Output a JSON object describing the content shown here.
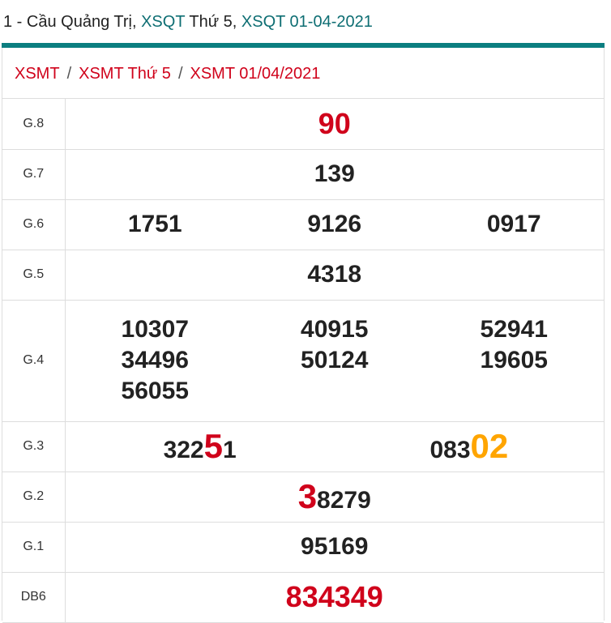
{
  "header": {
    "prefix": "1 - Cầu Quảng Trị, ",
    "link1": "XSQT",
    "mid": " Thứ 5, ",
    "link2": "XSQT 01-04-2021"
  },
  "breadcrumb": [
    "XSMT",
    "XSMT Thứ 5",
    "XSMT 01/04/2021"
  ],
  "breadcrumb_sep": "/",
  "colors": {
    "accent": "#0b7e80",
    "red": "#d0021b",
    "orange": "#ffa500"
  },
  "prizes": {
    "g8": {
      "label": "G.8",
      "value": "90"
    },
    "g7": {
      "label": "G.7",
      "value": "139"
    },
    "g6": {
      "label": "G.6",
      "values": [
        "1751",
        "9126",
        "0917"
      ]
    },
    "g5": {
      "label": "G.5",
      "value": "4318"
    },
    "g4": {
      "label": "G.4",
      "values": [
        "10307",
        "40915",
        "52941",
        "34496",
        "50124",
        "19605",
        "56055"
      ]
    },
    "g3": {
      "label": "G.3",
      "values": [
        {
          "pre": "322",
          "hl": "5",
          "post": "1"
        },
        {
          "pre": "083",
          "hl": "02",
          "post": ""
        }
      ]
    },
    "g2": {
      "label": "G.2",
      "hl": "3",
      "rest": "8279"
    },
    "g1": {
      "label": "G.1",
      "value": "95169"
    },
    "db": {
      "label": "DB6",
      "value": "834349"
    }
  }
}
